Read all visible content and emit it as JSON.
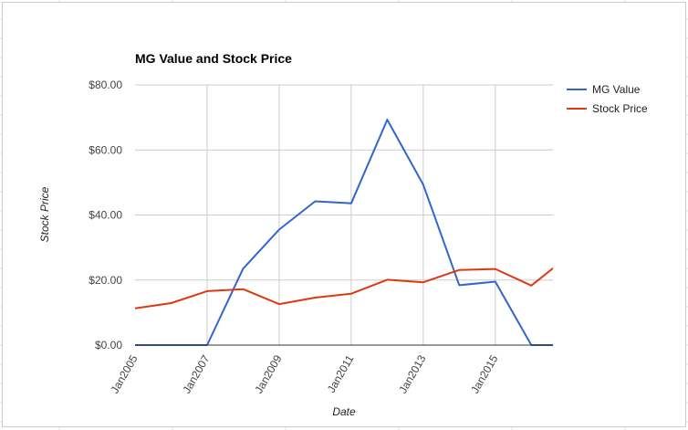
{
  "chart_data": {
    "type": "line",
    "title": "MG Value and Stock Price",
    "xlabel": "Date",
    "ylabel": "Stock Price",
    "x": [
      "2005",
      "2006",
      "2007",
      "2008",
      "2009",
      "2010",
      "2011",
      "2012",
      "2013",
      "2014",
      "2015",
      "2016",
      "2016.6"
    ],
    "x_tick_labels": [
      "Jan2005",
      "Jan2007",
      "Jan2009",
      "Jan2011",
      "Jan2013",
      "Jan2015"
    ],
    "y_tick_labels": [
      "$0.00",
      "$20.00",
      "$40.00",
      "$60.00",
      "$80.00"
    ],
    "ylim": [
      0,
      80
    ],
    "grid": true,
    "legend_position": "right",
    "series": [
      {
        "name": "MG Value",
        "color": "#3366cc",
        "values": [
          0,
          0,
          0,
          23.5,
          35.5,
          44.2,
          43.6,
          69.3,
          49.3,
          18.4,
          19.5,
          0,
          0
        ]
      },
      {
        "name": "Stock Price",
        "color": "#dc3912",
        "values": [
          11.3,
          12.9,
          16.6,
          17.2,
          12.6,
          14.6,
          15.8,
          20.1,
          19.3,
          23.1,
          23.4,
          18.3,
          23.6
        ]
      }
    ]
  }
}
